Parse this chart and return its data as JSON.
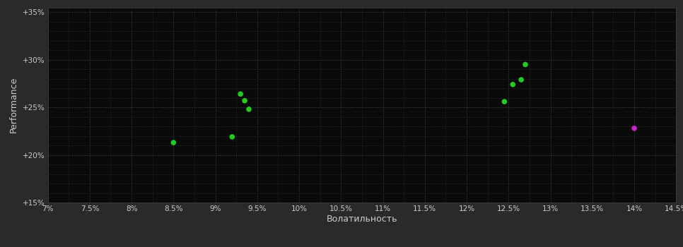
{
  "background_color": "#2a2a2a",
  "plot_bg_color": "#0a0a0a",
  "grid_color": "#444444",
  "grid_style": ":",
  "xlabel": "Волатильность",
  "ylabel": "Performance",
  "xlim": [
    0.07,
    0.145
  ],
  "ylim": [
    0.15,
    0.355
  ],
  "xticks": [
    0.07,
    0.075,
    0.08,
    0.085,
    0.09,
    0.095,
    0.1,
    0.105,
    0.11,
    0.115,
    0.12,
    0.125,
    0.13,
    0.135,
    0.14,
    0.145
  ],
  "yticks": [
    0.15,
    0.2,
    0.25,
    0.3,
    0.35
  ],
  "green_points": [
    [
      0.085,
      0.213
    ],
    [
      0.092,
      0.219
    ],
    [
      0.093,
      0.264
    ],
    [
      0.0935,
      0.257
    ],
    [
      0.094,
      0.248
    ],
    [
      0.1245,
      0.256
    ],
    [
      0.1255,
      0.274
    ],
    [
      0.1265,
      0.279
    ],
    [
      0.127,
      0.295
    ]
  ],
  "magenta_points": [
    [
      0.14,
      0.228
    ]
  ],
  "green_color": "#22cc22",
  "magenta_color": "#cc22cc",
  "marker_size": 30,
  "tick_color": "#cccccc",
  "label_color": "#cccccc",
  "tick_fontsize": 7.5,
  "label_fontsize": 9
}
